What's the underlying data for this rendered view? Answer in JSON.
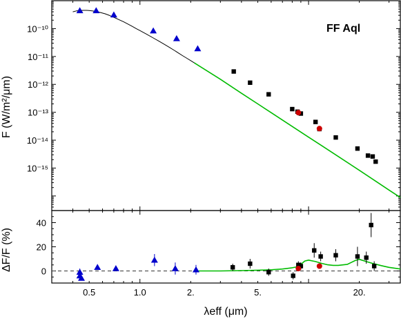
{
  "chart_data": [
    {
      "type": "line",
      "title": "",
      "annotation": "FF Aql",
      "xlabel": "λeff (μm)",
      "ylabel": "F (W/m²/μm)",
      "xscale": "log",
      "yscale": "log",
      "xlim": [
        0.3,
        35
      ],
      "ylim": [
        3e-17,
        1e-09
      ],
      "ytick_labels": [
        "10⁻¹⁰",
        "10⁻¹¹",
        "10⁻¹²",
        "10⁻¹³",
        "10⁻¹⁴",
        "10⁻¹⁵"
      ],
      "ytick_values": [
        1e-10,
        1e-11,
        1e-12,
        1e-13,
        1e-14,
        1e-15
      ],
      "grid": false,
      "colors": {
        "stellar_spectrum": "#000000",
        "model_fit": "#00bb00",
        "optical_photometry": "#0000cc",
        "infrared_photometry": "#000000",
        "spectroscopic_points": "#cc0000"
      },
      "series": [
        {
          "key": "stellar_spectrum",
          "style": "thin black line",
          "x": [
            0.4,
            0.42,
            0.44,
            0.46,
            0.48,
            0.5,
            0.52,
            0.55,
            0.58,
            0.62,
            0.66,
            0.7,
            0.75,
            0.8,
            0.85,
            0.9,
            0.95,
            1.0,
            1.1,
            1.2,
            1.3,
            1.4,
            1.5,
            1.6,
            1.7,
            1.8,
            1.9,
            2.0,
            2.1,
            2.2
          ],
          "y": [
            4e-10,
            4.3e-10,
            4.45e-10,
            4.5e-10,
            4.5e-10,
            4.45e-10,
            4.3e-10,
            4.1e-10,
            3.8e-10,
            3.4e-10,
            2.95e-10,
            2.55e-10,
            2.1e-10,
            1.75e-10,
            1.45e-10,
            1.2e-10,
            1e-10,
            8.5e-11,
            6.2e-11,
            4.6e-11,
            3.5e-11,
            2.7e-11,
            2.1e-11,
            1.65e-11,
            1.3e-11,
            1.05e-11,
            8.6e-12,
            7.1e-12,
            5.9e-12,
            5e-12
          ]
        },
        {
          "key": "model_fit",
          "style": "green line",
          "x": [
            2.1,
            3,
            4,
            5,
            6,
            8,
            10,
            12,
            15,
            20,
            25,
            30,
            35
          ],
          "y": [
            5.9e-12,
            1.53e-12,
            4.8e-13,
            2e-13,
            9.7e-14,
            3.1e-14,
            1.28e-14,
            6.3e-15,
            2.6e-15,
            8.3e-16,
            3.4e-16,
            1.63e-16,
            8.8e-17
          ]
        },
        {
          "key": "optical_photometry",
          "style": "blue triangles",
          "x": [
            0.44,
            0.55,
            0.7,
            1.2,
            1.65,
            2.2
          ],
          "y": [
            4.4e-10,
            4.4e-10,
            3.1e-10,
            8.3e-11,
            4.4e-11,
            1.9e-11
          ]
        },
        {
          "key": "infrared_photometry",
          "style": "black squares",
          "x": [
            3.6,
            4.5,
            5.8,
            8.0,
            8.6,
            9.0,
            11.0,
            11.6,
            14.5,
            19.5,
            22.5,
            24.0,
            25.0
          ],
          "y": [
            2.9e-12,
            1.15e-12,
            4.4e-13,
            1.3e-13,
            1.05e-13,
            9e-14,
            4.5e-14,
            2.5e-14,
            1.25e-14,
            5e-15,
            2.8e-15,
            2.6e-15,
            1.7e-15
          ]
        },
        {
          "key": "spectroscopic_points",
          "style": "red dots",
          "x": [
            8.7,
            11.6
          ],
          "y": [
            9.7e-14,
            2.6e-14
          ]
        }
      ]
    },
    {
      "type": "scatter",
      "title": "",
      "xlabel": "λeff (μm)",
      "ylabel": "ΔF/F (%)",
      "xscale": "log",
      "xlim": [
        0.3,
        35
      ],
      "ylim": [
        -10,
        50
      ],
      "yticks": [
        0,
        20,
        40
      ],
      "ytick_labels": [
        "0",
        "20",
        "40"
      ],
      "xtick_values": [
        0.5,
        1.0,
        2.0,
        5.0,
        20.0
      ],
      "xtick_labels": [
        "0.5",
        "1.0",
        "2.",
        "5.",
        "20."
      ],
      "zero_line": "dashed",
      "series": [
        {
          "key": "optical_photometry",
          "style": "blue triangles with error bars",
          "x": [
            0.44,
            0.44,
            0.45,
            0.56,
            0.72,
            1.22,
            1.62,
            2.15
          ],
          "y": [
            -1,
            -4,
            -6,
            3,
            2,
            9,
            2,
            1
          ],
          "err": [
            3,
            2,
            2,
            2,
            2,
            5,
            5,
            4
          ]
        },
        {
          "key": "infrared_photometry",
          "style": "black squares with error bars",
          "x": [
            3.55,
            4.5,
            5.8,
            8.1,
            8.7,
            9.0,
            10.8,
            11.8,
            14.5,
            19.5,
            22.0,
            23.5,
            24.5
          ],
          "y": [
            3,
            6,
            -1,
            -4,
            5,
            4,
            17,
            12,
            13,
            12,
            11,
            38,
            4
          ],
          "err": [
            3,
            4,
            3,
            3,
            3,
            3,
            6,
            4,
            5,
            8,
            5,
            10,
            4
          ]
        },
        {
          "key": "spectroscopic_points",
          "style": "red dots",
          "x": [
            8.7,
            11.6
          ],
          "y": [
            2,
            4
          ],
          "err": [
            0,
            0
          ]
        },
        {
          "key": "model_fit",
          "style": "green line",
          "x": [
            2.1,
            3,
            4,
            5,
            6,
            7,
            8,
            8.5,
            9.0,
            9.5,
            10,
            11,
            12,
            13,
            14,
            15,
            17,
            19,
            20,
            22,
            24,
            27,
            30,
            35
          ],
          "y": [
            0,
            0,
            0.3,
            0.6,
            1,
            1.6,
            2.6,
            3.4,
            5.5,
            8.2,
            9.0,
            7.8,
            6.2,
            5.1,
            4.6,
            4.6,
            5.5,
            8.8,
            9.6,
            7.8,
            6.2,
            4.4,
            3.0,
            1.6
          ]
        }
      ]
    }
  ]
}
